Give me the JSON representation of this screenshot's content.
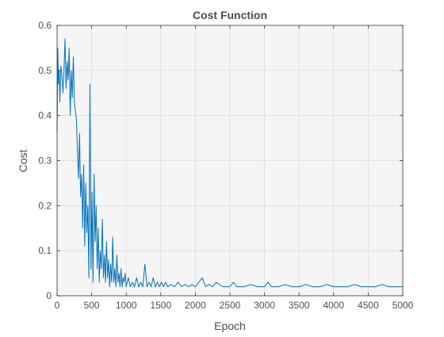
{
  "chart_data": {
    "type": "line",
    "title": "Cost Function",
    "xlabel": "Epoch",
    "ylabel": "Cost",
    "xlim": [
      0,
      5000
    ],
    "ylim": [
      0,
      0.6
    ],
    "x_ticks": [
      0,
      500,
      1000,
      1500,
      2000,
      2500,
      3000,
      3500,
      4000,
      4500,
      5000
    ],
    "y_ticks": [
      0,
      0.1,
      0.2,
      0.3,
      0.4,
      0.5,
      0.6
    ],
    "x_tick_labels": [
      "0",
      "500",
      "1000",
      "1500",
      "2000",
      "2500",
      "3000",
      "3500",
      "4000",
      "4500",
      "5000"
    ],
    "y_tick_labels": [
      "0",
      "0.1",
      "0.2",
      "0.3",
      "0.4",
      "0.5",
      "0.6"
    ],
    "grid": true,
    "colors": {
      "line": "#0072bd",
      "plot_background": "#f5f5f5",
      "grid": "#dcdcdc",
      "axis": "#333333",
      "text": "#4d4d4d"
    },
    "series": [
      {
        "x": [
          0,
          10,
          20,
          30,
          40,
          55,
          70,
          85,
          100,
          115,
          130,
          145,
          160,
          175,
          190,
          205,
          220,
          235,
          250,
          265,
          280,
          295,
          310,
          325,
          340,
          355,
          370,
          385,
          400,
          415,
          430,
          445,
          460,
          475,
          490,
          505,
          520,
          535,
          550,
          565,
          580,
          595,
          610,
          625,
          640,
          655,
          670,
          685,
          700,
          715,
          730,
          745,
          760,
          775,
          790,
          805,
          820,
          835,
          850,
          865,
          880,
          895,
          910,
          925,
          940,
          955,
          970,
          985,
          1000,
          1030,
          1060,
          1090,
          1120,
          1150,
          1180,
          1210,
          1240,
          1270,
          1300,
          1330,
          1360,
          1390,
          1420,
          1450,
          1480,
          1510,
          1540,
          1570,
          1600,
          1650,
          1700,
          1750,
          1800,
          1850,
          1900,
          1950,
          2000,
          2100,
          2150,
          2200,
          2250,
          2300,
          2400,
          2500,
          2550,
          2600,
          2700,
          2800,
          2900,
          3000,
          3050,
          3100,
          3200,
          3300,
          3400,
          3500,
          3600,
          3700,
          3800,
          3900,
          4000,
          4100,
          4200,
          4300,
          4400,
          4500,
          4600,
          4700,
          4800,
          4900,
          5000
        ],
        "y": [
          0.36,
          0.55,
          0.47,
          0.5,
          0.43,
          0.51,
          0.49,
          0.45,
          0.5,
          0.57,
          0.46,
          0.52,
          0.48,
          0.55,
          0.4,
          0.5,
          0.44,
          0.53,
          0.43,
          0.41,
          0.39,
          0.32,
          0.26,
          0.36,
          0.22,
          0.27,
          0.15,
          0.29,
          0.11,
          0.25,
          0.14,
          0.2,
          0.04,
          0.47,
          0.06,
          0.23,
          0.03,
          0.27,
          0.12,
          0.2,
          0.06,
          0.15,
          0.03,
          0.1,
          0.06,
          0.17,
          0.04,
          0.09,
          0.03,
          0.12,
          0.04,
          0.08,
          0.02,
          0.07,
          0.03,
          0.13,
          0.03,
          0.06,
          0.02,
          0.09,
          0.03,
          0.05,
          0.02,
          0.06,
          0.02,
          0.04,
          0.03,
          0.05,
          0.02,
          0.04,
          0.02,
          0.03,
          0.02,
          0.04,
          0.02,
          0.03,
          0.02,
          0.07,
          0.02,
          0.03,
          0.02,
          0.04,
          0.02,
          0.03,
          0.02,
          0.03,
          0.02,
          0.03,
          0.02,
          0.025,
          0.02,
          0.03,
          0.02,
          0.025,
          0.02,
          0.025,
          0.02,
          0.04,
          0.02,
          0.025,
          0.02,
          0.03,
          0.02,
          0.02,
          0.03,
          0.02,
          0.02,
          0.025,
          0.02,
          0.02,
          0.03,
          0.02,
          0.02,
          0.025,
          0.02,
          0.02,
          0.025,
          0.02,
          0.02,
          0.025,
          0.02,
          0.02,
          0.02,
          0.025,
          0.02,
          0.02,
          0.02,
          0.025,
          0.02,
          0.02,
          0.02
        ]
      }
    ]
  }
}
